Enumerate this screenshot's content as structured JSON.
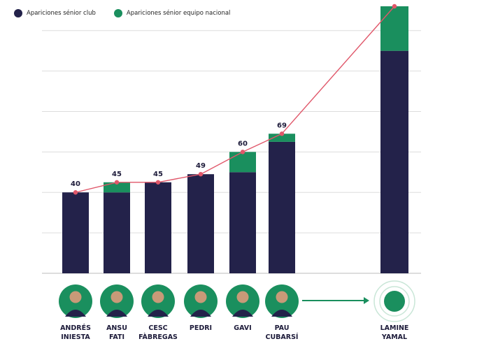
{
  "legend": {
    "club_label": "Apariciones sénior club",
    "national_label": "Apariciones sénior equipo nacional"
  },
  "colors": {
    "club": "#23224a",
    "national": "#1a8f5e",
    "line": "#e0576a",
    "grid": "#dddddd",
    "avatar_ring": "#1a8f5e"
  },
  "chart_data": {
    "type": "bar",
    "stacked": true,
    "categories": [
      [
        "ANDRÉS",
        "INIESTA"
      ],
      [
        "ANSU",
        "FATI"
      ],
      [
        "CESC",
        "FÀBREGAS"
      ],
      [
        "PEDRI"
      ],
      [
        "GAVI"
      ],
      [
        "PAU",
        "CUBARSÍ"
      ],
      [
        "LAMINE",
        "YAMAL"
      ]
    ],
    "series": [
      {
        "name": "Apariciones sénior club",
        "values": [
          40,
          40,
          45,
          49,
          50,
          65,
          110
        ]
      },
      {
        "name": "Apariciones sénior equipo nacional",
        "values": [
          0,
          5,
          0,
          0,
          10,
          4,
          22
        ]
      }
    ],
    "totals": [
      40,
      45,
      45,
      49,
      60,
      69,
      132
    ],
    "total_labels": [
      "40",
      "45",
      "45",
      "49",
      "60",
      "69",
      ""
    ],
    "ylim": [
      0,
      132
    ],
    "grid": true,
    "legend_position": "top-left"
  }
}
